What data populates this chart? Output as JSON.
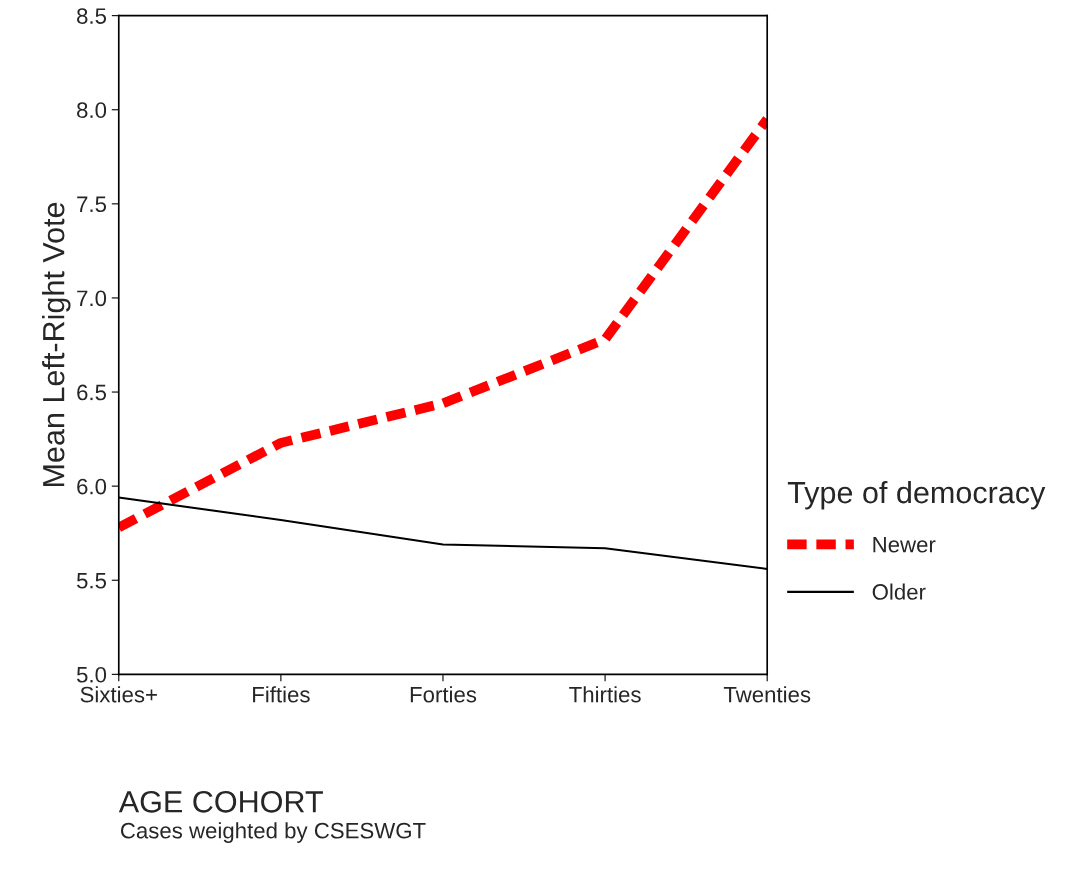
{
  "chart_data": {
    "type": "line",
    "xlabel": "AGE COHORT",
    "ylabel": "Mean Left-Right Vote",
    "legend_title": "Type of democracy",
    "categories": [
      "Sixties+",
      "Fifties",
      "Forties",
      "Thirties",
      "Twenties"
    ],
    "series": [
      {
        "name": "Newer",
        "color": "#ff0000",
        "line_style": "dashed",
        "values": [
          5.78,
          6.23,
          6.44,
          6.78,
          7.95
        ]
      },
      {
        "name": "Older",
        "color": "#000000",
        "line_style": "solid",
        "values": [
          5.94,
          5.82,
          5.69,
          5.67,
          5.56
        ]
      }
    ],
    "ylim": [
      5.0,
      8.5
    ],
    "yticks": [
      {
        "value": 5.0,
        "label": "5.0"
      },
      {
        "value": 5.5,
        "label": "5.5"
      },
      {
        "value": 6.0,
        "label": "6.0"
      },
      {
        "value": 6.5,
        "label": "6.5"
      },
      {
        "value": 7.0,
        "label": "7.0"
      },
      {
        "value": 7.5,
        "label": "7.5"
      },
      {
        "value": 8.0,
        "label": "8.0"
      },
      {
        "value": 8.5,
        "label": "8.5"
      }
    ],
    "grid": false,
    "legend": "right",
    "marker": "none",
    "annotations": [
      "Cases weighted by CSESWGT"
    ]
  }
}
